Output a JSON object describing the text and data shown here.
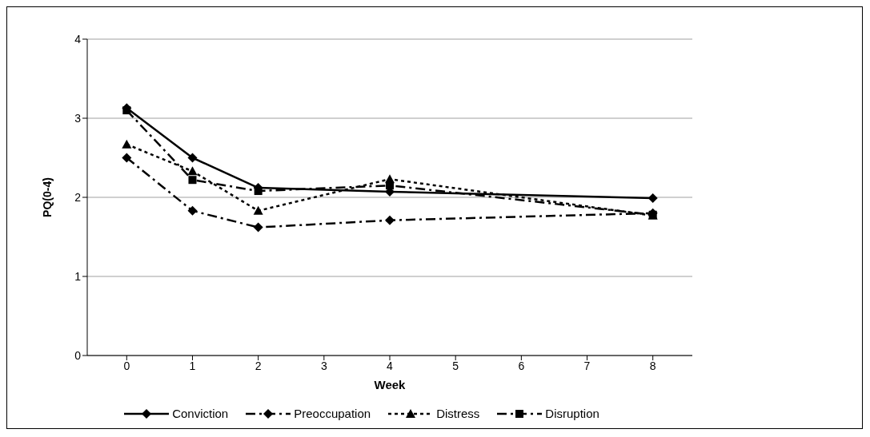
{
  "chart_data": {
    "type": "line",
    "xlabel": "Week",
    "ylabel": "PQ(0-4)",
    "x": [
      0,
      1,
      2,
      4,
      8
    ],
    "xlim": [
      -0.6,
      8.6
    ],
    "xticks": [
      0,
      1,
      2,
      3,
      4,
      5,
      6,
      7,
      8
    ],
    "ylim": [
      0,
      4
    ],
    "yticks": [
      0,
      1,
      2,
      3,
      4
    ],
    "grid": "y",
    "legend": "bottom",
    "series": [
      {
        "name": "Conviction",
        "color": "#000000",
        "values": [
          3.13,
          2.5,
          2.12,
          2.07,
          1.99
        ],
        "marker": "diamond",
        "line_style": "solid"
      },
      {
        "name": "Preoccupation",
        "color": "#000000",
        "values": [
          2.5,
          1.83,
          1.62,
          1.71,
          1.8
        ],
        "marker": "diamond",
        "line_style": "dashed"
      },
      {
        "name": "Distress",
        "color": "#000000",
        "values": [
          2.67,
          2.33,
          1.83,
          2.23,
          1.77
        ],
        "marker": "triangle",
        "line_style": "dotted"
      },
      {
        "name": "Disruption",
        "color": "#000000",
        "values": [
          3.1,
          2.22,
          2.08,
          2.15,
          1.78
        ],
        "marker": "square",
        "line_style": "dashed"
      }
    ]
  }
}
